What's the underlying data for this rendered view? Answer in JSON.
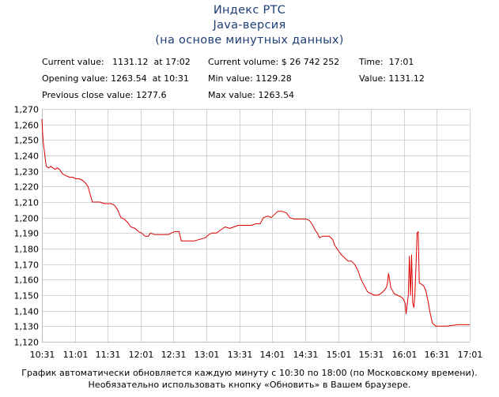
{
  "title": {
    "line1": "Индекс РТС",
    "line2": "Java-версия",
    "line3": "(на основе минутных данных)"
  },
  "info": {
    "current_value": "Current value:   1131.12  at 17:02",
    "opening_value": "Opening value: 1263.54  at 10:31",
    "previous_close": "Previous close value: 1277.6",
    "current_volume": "Current volume: $ 26 742 252",
    "min_value": "Min value: 1129.28",
    "max_value": "Max value: 1263.54",
    "time": "Time:  17:01",
    "value": "Value: 1131.12"
  },
  "footer": {
    "line1": "График автоматически обновляется каждую минуту с 10:30 по 18:00 (по Московскому времени).",
    "line2": "Необязательно использовать кнопку «Обновить» в Вашем браузере."
  },
  "chart_data": {
    "type": "line",
    "line_color": "#dd0000",
    "grid_color": "#d4d4d4",
    "grid": true,
    "xlim": [
      "10:31",
      "17:01"
    ],
    "ylim": [
      1120,
      1270
    ],
    "y_ticks": [
      "1,120",
      "1,130",
      "1,140",
      "1,150",
      "1,160",
      "1,170",
      "1,180",
      "1,190",
      "1,200",
      "1,210",
      "1,220",
      "1,230",
      "1,240",
      "1,250",
      "1,260",
      "1,270"
    ],
    "x_ticks": [
      "10:31",
      "11:01",
      "11:31",
      "12:01",
      "12:31",
      "13:01",
      "13:31",
      "14:01",
      "14:31",
      "15:01",
      "15:31",
      "16:01",
      "16:31",
      "17:01"
    ],
    "series": [
      {
        "points": [
          [
            "10:31",
            1263.5
          ],
          [
            "10:32",
            1250
          ],
          [
            "10:33",
            1244
          ],
          [
            "10:34",
            1238
          ],
          [
            "10:35",
            1233
          ],
          [
            "10:37",
            1232
          ],
          [
            "10:39",
            1233
          ],
          [
            "10:41",
            1232
          ],
          [
            "10:43",
            1231
          ],
          [
            "10:45",
            1232
          ],
          [
            "10:47",
            1231
          ],
          [
            "10:50",
            1228
          ],
          [
            "10:53",
            1227
          ],
          [
            "10:56",
            1226
          ],
          [
            "10:59",
            1226
          ],
          [
            "11:02",
            1225
          ],
          [
            "11:05",
            1225
          ],
          [
            "11:08",
            1224
          ],
          [
            "11:11",
            1222
          ],
          [
            "11:13",
            1220
          ],
          [
            "11:15",
            1215
          ],
          [
            "11:17",
            1210
          ],
          [
            "11:20",
            1210
          ],
          [
            "11:24",
            1210
          ],
          [
            "11:28",
            1209
          ],
          [
            "11:31",
            1209
          ],
          [
            "11:34",
            1209
          ],
          [
            "11:37",
            1208
          ],
          [
            "11:40",
            1205
          ],
          [
            "11:43",
            1200
          ],
          [
            "11:46",
            1199
          ],
          [
            "11:49",
            1197
          ],
          [
            "11:52",
            1194
          ],
          [
            "11:56",
            1193
          ],
          [
            "11:59",
            1191
          ],
          [
            "12:02",
            1190
          ],
          [
            "12:05",
            1188
          ],
          [
            "12:08",
            1188
          ],
          [
            "12:10",
            1190
          ],
          [
            "12:14",
            1189
          ],
          [
            "12:18",
            1189
          ],
          [
            "12:22",
            1189
          ],
          [
            "12:26",
            1189
          ],
          [
            "12:29",
            1190
          ],
          [
            "12:32",
            1191
          ],
          [
            "12:36",
            1191
          ],
          [
            "12:38",
            1185
          ],
          [
            "12:42",
            1185
          ],
          [
            "12:46",
            1185
          ],
          [
            "12:50",
            1185
          ],
          [
            "12:55",
            1186
          ],
          [
            "13:00",
            1187
          ],
          [
            "13:03",
            1189
          ],
          [
            "13:06",
            1190
          ],
          [
            "13:10",
            1190
          ],
          [
            "13:14",
            1192
          ],
          [
            "13:18",
            1194
          ],
          [
            "13:22",
            1193
          ],
          [
            "13:26",
            1194
          ],
          [
            "13:30",
            1195
          ],
          [
            "13:34",
            1195
          ],
          [
            "13:38",
            1195
          ],
          [
            "13:42",
            1195
          ],
          [
            "13:46",
            1196
          ],
          [
            "13:50",
            1196
          ],
          [
            "13:53",
            1200
          ],
          [
            "13:57",
            1201
          ],
          [
            "14:00",
            1200
          ],
          [
            "14:03",
            1202
          ],
          [
            "14:06",
            1204
          ],
          [
            "14:10",
            1204
          ],
          [
            "14:14",
            1203
          ],
          [
            "14:17",
            1200
          ],
          [
            "14:21",
            1199
          ],
          [
            "14:25",
            1199
          ],
          [
            "14:29",
            1199
          ],
          [
            "14:32",
            1199
          ],
          [
            "14:35",
            1198
          ],
          [
            "14:38",
            1195
          ],
          [
            "14:40",
            1192
          ],
          [
            "14:42",
            1190
          ],
          [
            "14:44",
            1187
          ],
          [
            "14:47",
            1188
          ],
          [
            "14:50",
            1188
          ],
          [
            "14:53",
            1188
          ],
          [
            "14:56",
            1186
          ],
          [
            "14:58",
            1182
          ],
          [
            "15:01",
            1179
          ],
          [
            "15:04",
            1176
          ],
          [
            "15:07",
            1174
          ],
          [
            "15:10",
            1172
          ],
          [
            "15:13",
            1172
          ],
          [
            "15:16",
            1170
          ],
          [
            "15:19",
            1166
          ],
          [
            "15:22",
            1160
          ],
          [
            "15:25",
            1156
          ],
          [
            "15:28",
            1152
          ],
          [
            "15:31",
            1151
          ],
          [
            "15:34",
            1150
          ],
          [
            "15:37",
            1150
          ],
          [
            "15:40",
            1151
          ],
          [
            "15:43",
            1153
          ],
          [
            "15:45",
            1155
          ],
          [
            "15:46",
            1158
          ],
          [
            "15:47",
            1164
          ],
          [
            "15:48",
            1160
          ],
          [
            "15:49",
            1155
          ],
          [
            "15:52",
            1151
          ],
          [
            "15:55",
            1150
          ],
          [
            "15:58",
            1149
          ],
          [
            "16:00",
            1148
          ],
          [
            "16:02",
            1145
          ],
          [
            "16:03",
            1138
          ],
          [
            "16:05",
            1150
          ],
          [
            "16:06",
            1175
          ],
          [
            "16:07",
            1150
          ],
          [
            "16:08",
            1176
          ],
          [
            "16:09",
            1145
          ],
          [
            "16:10",
            1142
          ],
          [
            "16:11",
            1150
          ],
          [
            "16:12",
            1168
          ],
          [
            "16:13",
            1190
          ],
          [
            "16:14",
            1191
          ],
          [
            "16:15",
            1158
          ],
          [
            "16:17",
            1157
          ],
          [
            "16:19",
            1156
          ],
          [
            "16:21",
            1153
          ],
          [
            "16:23",
            1146
          ],
          [
            "16:25",
            1138
          ],
          [
            "16:27",
            1132
          ],
          [
            "16:30",
            1130
          ],
          [
            "16:34",
            1130
          ],
          [
            "16:40",
            1130
          ],
          [
            "16:50",
            1131
          ],
          [
            "17:01",
            1131
          ]
        ]
      }
    ]
  }
}
